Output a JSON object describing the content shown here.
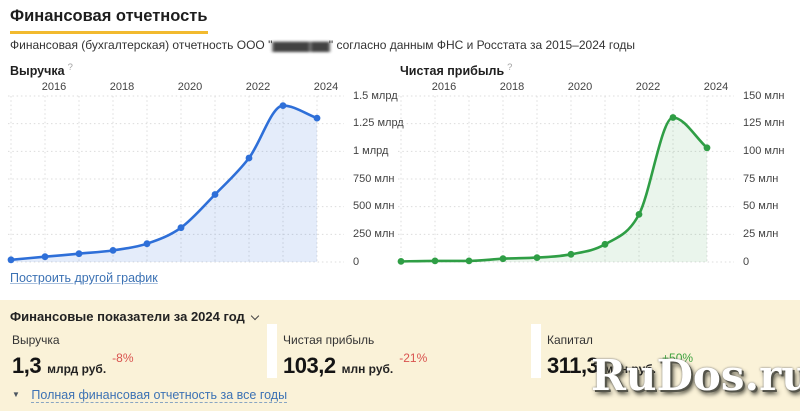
{
  "page": {
    "title": "Финансовая отчетность",
    "subtitle_prefix": "Финансовая (бухгалтерская) отчетность ООО \"",
    "subtitle_redacted": "██████ ███",
    "subtitle_suffix": "\" согласно данным ФНС и Росстата за 2015–2024 годы"
  },
  "colors": {
    "title_underline": "#f2ba2f",
    "panel_bg": "#faf2d8",
    "grid": "#dcdcdc",
    "link": "#3c72b4"
  },
  "links": {
    "build_chart": "Построить другой график"
  },
  "chart_data": [
    {
      "type": "area",
      "title": "Выручка",
      "help": "?",
      "x": [
        2015,
        2016,
        2017,
        2018,
        2019,
        2020,
        2021,
        2022,
        2023,
        2024
      ],
      "values_mln": [
        20,
        48,
        75,
        105,
        165,
        310,
        610,
        940,
        1413,
        1300
      ],
      "x_tick_labels": [
        "2016",
        "2018",
        "2020",
        "2022",
        "2024"
      ],
      "y_tick_labels": [
        "1.5 млрд",
        "1.25 млрд",
        "1 млрд",
        "750 млн",
        "500 млн",
        "250 млн",
        "0"
      ],
      "ylim_mln": [
        0,
        1500
      ],
      "grid": "dotted",
      "legend": "none",
      "line_color": "#2e6fd8",
      "fill_color": "rgba(46,111,216,0.13)"
    },
    {
      "type": "area",
      "title": "Чистая прибыль",
      "help": "?",
      "x": [
        2015,
        2016,
        2017,
        2018,
        2019,
        2020,
        2021,
        2022,
        2023,
        2024
      ],
      "values_mln": [
        0.5,
        1,
        1,
        3,
        4,
        7,
        16,
        43,
        130.6,
        103.2
      ],
      "x_tick_labels": [
        "2016",
        "2018",
        "2020",
        "2022",
        "2024"
      ],
      "y_tick_labels": [
        "150 млн",
        "125 млн",
        "100 млн",
        "75 млн",
        "50 млн",
        "25 млн",
        "0"
      ],
      "ylim_mln": [
        0,
        150
      ],
      "grid": "dotted",
      "legend": "none",
      "line_color": "#2f9e45",
      "fill_color": "rgba(47,158,69,0.10)"
    }
  ],
  "indicators": {
    "heading_prefix": "Финансовые показатели за",
    "year_selector": "2024 год",
    "cards": [
      {
        "label": "Выручка",
        "value": "1,3",
        "unit": "млрд руб.",
        "change": "-8%",
        "change_color": "#d9534f"
      },
      {
        "label": "Чистая прибыль",
        "value": "103,2",
        "unit": "млн руб.",
        "change": "-21%",
        "change_color": "#d9534f"
      },
      {
        "label": "Капитал",
        "value": "311,3",
        "unit": "млн руб.",
        "change": "+50%",
        "change_color": "#3da23d"
      }
    ],
    "full_report_link": "Полная финансовая отчетность за все годы"
  },
  "watermark": "RuDos.ru"
}
